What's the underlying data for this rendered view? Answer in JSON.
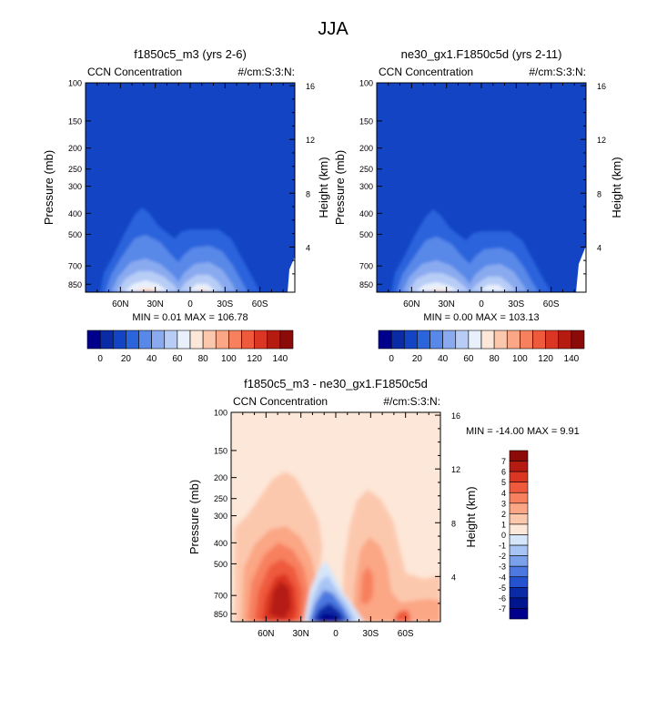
{
  "figure": {
    "title": "JJA"
  },
  "chart_data": [
    {
      "type": "heatmap",
      "title": "f1850c5_m3 (yrs 2-6)",
      "left_label": "CCN Concentration",
      "right_label": "#/cm:S:3:N:",
      "ylabel": "Pressure (mb)",
      "ylabel_right": "Height (km)",
      "x_ticks": [
        "60N",
        "30N",
        "0",
        "30S",
        "60S"
      ],
      "y_ticks": [
        "100",
        "150",
        "200",
        "250",
        "300",
        "400",
        "500",
        "700",
        "850"
      ],
      "y_ticks_right": [
        "16",
        "12",
        "8",
        "4"
      ],
      "ylim_mb": [
        100,
        925
      ],
      "stats": "MIN =  0.01  MAX = 106.78",
      "colorbar_ticks": [
        "0",
        "20",
        "40",
        "60",
        "80",
        "100",
        "120",
        "140"
      ],
      "colorbar_colors": [
        "#00008c",
        "#0a2aa6",
        "#1244c4",
        "#2c64dc",
        "#5888e8",
        "#8aaaf0",
        "#b8cdf6",
        "#e8f0fc",
        "#fde7d8",
        "#fcc8ad",
        "#fba684",
        "#f7805e",
        "#ef5a3c",
        "#db3524",
        "#b61b12",
        "#8c0a08"
      ]
    },
    {
      "type": "heatmap",
      "title": "ne30_gx1.F1850c5d (yrs 2-11)",
      "left_label": "CCN Concentration",
      "right_label": "#/cm:S:3:N:",
      "ylabel": "Pressure (mb)",
      "ylabel_right": "Height (km)",
      "x_ticks": [
        "60N",
        "30N",
        "0",
        "30S",
        "60S"
      ],
      "y_ticks": [
        "100",
        "150",
        "200",
        "250",
        "300",
        "400",
        "500",
        "700",
        "850"
      ],
      "y_ticks_right": [
        "16",
        "12",
        "8",
        "4"
      ],
      "ylim_mb": [
        100,
        925
      ],
      "stats": "MIN =  0.00  MAX = 103.13",
      "colorbar_ticks": [
        "0",
        "20",
        "40",
        "60",
        "80",
        "100",
        "120",
        "140"
      ],
      "colorbar_colors": [
        "#00008c",
        "#0a2aa6",
        "#1244c4",
        "#2c64dc",
        "#5888e8",
        "#8aaaf0",
        "#b8cdf6",
        "#e8f0fc",
        "#fde7d8",
        "#fcc8ad",
        "#fba684",
        "#f7805e",
        "#ef5a3c",
        "#db3524",
        "#b61b12",
        "#8c0a08"
      ]
    },
    {
      "type": "heatmap",
      "title": "f1850c5_m3 - ne30_gx1.F1850c5d",
      "left_label": "CCN Concentration",
      "right_label": "#/cm:S:3:N:",
      "ylabel": "Pressure (mb)",
      "ylabel_right": "Height (km)",
      "x_ticks": [
        "60N",
        "30N",
        "0",
        "30S",
        "60S"
      ],
      "y_ticks": [
        "100",
        "150",
        "200",
        "250",
        "300",
        "400",
        "500",
        "700",
        "850"
      ],
      "y_ticks_right": [
        "16",
        "12",
        "8",
        "4"
      ],
      "ylim_mb": [
        100,
        925
      ],
      "stats": "MIN = -14.00  MAX =  9.91",
      "colorbar_ticks": [
        "7",
        "6",
        "5",
        "4",
        "3",
        "2",
        "1",
        "0",
        "-1",
        "-2",
        "-3",
        "-4",
        "-5",
        "-6",
        "-7"
      ],
      "colorbar_colors": [
        "#8c0a08",
        "#b61b12",
        "#db3524",
        "#ef5a3c",
        "#f7805e",
        "#fba684",
        "#fcc8ad",
        "#fde7d8",
        "#d6e6fa",
        "#a8c4f4",
        "#7aa2ec",
        "#4c78e0",
        "#2452d0",
        "#0a2aa6",
        "#00158e",
        "#00008c"
      ]
    }
  ]
}
